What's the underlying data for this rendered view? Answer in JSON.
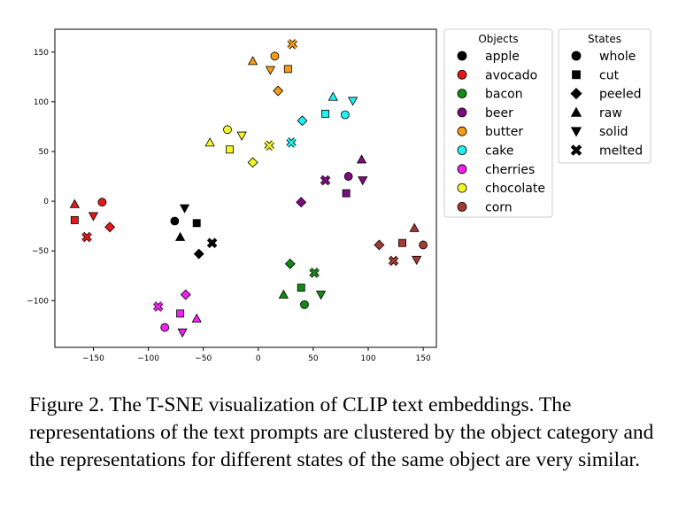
{
  "chart_data": {
    "type": "scatter",
    "xlim": [
      -185,
      162
    ],
    "ylim": [
      -147,
      173
    ],
    "xticks": [
      -150,
      -100,
      -50,
      0,
      50,
      100,
      150
    ],
    "yticks": [
      -100,
      -50,
      0,
      50,
      100,
      150
    ],
    "grid": false,
    "legends": [
      {
        "title": "Objects",
        "encodes": "color",
        "items": [
          {
            "label": "apple",
            "color": "#000000"
          },
          {
            "label": "avocado",
            "color": "#e31a1c"
          },
          {
            "label": "bacon",
            "color": "#138a13"
          },
          {
            "label": "beer",
            "color": "#7f0a7f"
          },
          {
            "label": "butter",
            "color": "#f59b14"
          },
          {
            "label": "cake",
            "color": "#22f0f0"
          },
          {
            "label": "cherries",
            "color": "#f020f0"
          },
          {
            "label": "chocolate",
            "color": "#f5f52a"
          },
          {
            "label": "corn",
            "color": "#a33a34"
          }
        ]
      },
      {
        "title": "States",
        "encodes": "marker",
        "items": [
          {
            "label": "whole",
            "marker": "circle"
          },
          {
            "label": "cut",
            "marker": "square"
          },
          {
            "label": "peeled",
            "marker": "diamond"
          },
          {
            "label": "raw",
            "marker": "triangle-up"
          },
          {
            "label": "solid",
            "marker": "triangle-down"
          },
          {
            "label": "melted",
            "marker": "x"
          }
        ]
      }
    ],
    "points": [
      {
        "object": "apple",
        "state": "whole",
        "x": -76,
        "y": -20
      },
      {
        "object": "apple",
        "state": "cut",
        "x": -56,
        "y": -22
      },
      {
        "object": "apple",
        "state": "peeled",
        "x": -54,
        "y": -53
      },
      {
        "object": "apple",
        "state": "raw",
        "x": -71,
        "y": -36
      },
      {
        "object": "apple",
        "state": "solid",
        "x": -67,
        "y": -7
      },
      {
        "object": "apple",
        "state": "melted",
        "x": -42,
        "y": -42
      },
      {
        "object": "avocado",
        "state": "whole",
        "x": -142,
        "y": -1
      },
      {
        "object": "avocado",
        "state": "cut",
        "x": -167,
        "y": -19
      },
      {
        "object": "avocado",
        "state": "peeled",
        "x": -135,
        "y": -26
      },
      {
        "object": "avocado",
        "state": "raw",
        "x": -167,
        "y": -3
      },
      {
        "object": "avocado",
        "state": "solid",
        "x": -150,
        "y": -15
      },
      {
        "object": "avocado",
        "state": "melted",
        "x": -156,
        "y": -36
      },
      {
        "object": "bacon",
        "state": "whole",
        "x": 42,
        "y": -104
      },
      {
        "object": "bacon",
        "state": "cut",
        "x": 39,
        "y": -87
      },
      {
        "object": "bacon",
        "state": "peeled",
        "x": 29,
        "y": -63
      },
      {
        "object": "bacon",
        "state": "raw",
        "x": 23,
        "y": -94
      },
      {
        "object": "bacon",
        "state": "solid",
        "x": 57,
        "y": -94
      },
      {
        "object": "bacon",
        "state": "melted",
        "x": 51,
        "y": -72
      },
      {
        "object": "beer",
        "state": "whole",
        "x": 82,
        "y": 25
      },
      {
        "object": "beer",
        "state": "cut",
        "x": 80,
        "y": 8
      },
      {
        "object": "beer",
        "state": "peeled",
        "x": 39,
        "y": -1
      },
      {
        "object": "beer",
        "state": "raw",
        "x": 94,
        "y": 42
      },
      {
        "object": "beer",
        "state": "solid",
        "x": 95,
        "y": 21
      },
      {
        "object": "beer",
        "state": "melted",
        "x": 61,
        "y": 21
      },
      {
        "object": "butter",
        "state": "whole",
        "x": 15,
        "y": 146
      },
      {
        "object": "butter",
        "state": "cut",
        "x": 27,
        "y": 133
      },
      {
        "object": "butter",
        "state": "peeled",
        "x": 18,
        "y": 111
      },
      {
        "object": "butter",
        "state": "raw",
        "x": -5,
        "y": 141
      },
      {
        "object": "butter",
        "state": "solid",
        "x": 11,
        "y": 132
      },
      {
        "object": "butter",
        "state": "melted",
        "x": 31,
        "y": 158
      },
      {
        "object": "cake",
        "state": "whole",
        "x": 79,
        "y": 87
      },
      {
        "object": "cake",
        "state": "cut",
        "x": 61,
        "y": 88
      },
      {
        "object": "cake",
        "state": "peeled",
        "x": 40,
        "y": 81
      },
      {
        "object": "cake",
        "state": "raw",
        "x": 68,
        "y": 105
      },
      {
        "object": "cake",
        "state": "solid",
        "x": 86,
        "y": 101
      },
      {
        "object": "cake",
        "state": "melted",
        "x": 30,
        "y": 59
      },
      {
        "object": "cherries",
        "state": "whole",
        "x": -85,
        "y": -127
      },
      {
        "object": "cherries",
        "state": "cut",
        "x": -71,
        "y": -113
      },
      {
        "object": "cherries",
        "state": "peeled",
        "x": -66,
        "y": -94
      },
      {
        "object": "cherries",
        "state": "raw",
        "x": -56,
        "y": -118
      },
      {
        "object": "cherries",
        "state": "solid",
        "x": -69,
        "y": -132
      },
      {
        "object": "cherries",
        "state": "melted",
        "x": -91,
        "y": -106
      },
      {
        "object": "chocolate",
        "state": "whole",
        "x": -28,
        "y": 72
      },
      {
        "object": "chocolate",
        "state": "cut",
        "x": -26,
        "y": 52
      },
      {
        "object": "chocolate",
        "state": "peeled",
        "x": -5,
        "y": 39
      },
      {
        "object": "chocolate",
        "state": "raw",
        "x": -44,
        "y": 59
      },
      {
        "object": "chocolate",
        "state": "solid",
        "x": -15,
        "y": 66
      },
      {
        "object": "chocolate",
        "state": "melted",
        "x": 10,
        "y": 56
      },
      {
        "object": "corn",
        "state": "whole",
        "x": 150,
        "y": -44
      },
      {
        "object": "corn",
        "state": "cut",
        "x": 131,
        "y": -42
      },
      {
        "object": "corn",
        "state": "peeled",
        "x": 110,
        "y": -44
      },
      {
        "object": "corn",
        "state": "raw",
        "x": 142,
        "y": -27
      },
      {
        "object": "corn",
        "state": "solid",
        "x": 144,
        "y": -59
      },
      {
        "object": "corn",
        "state": "melted",
        "x": 123,
        "y": -60
      }
    ]
  },
  "caption": "Figure 2. The T-SNE visualization of CLIP text embeddings. The representations of the text prompts are clustered by the object category and the representations for different states of the same object are very similar."
}
